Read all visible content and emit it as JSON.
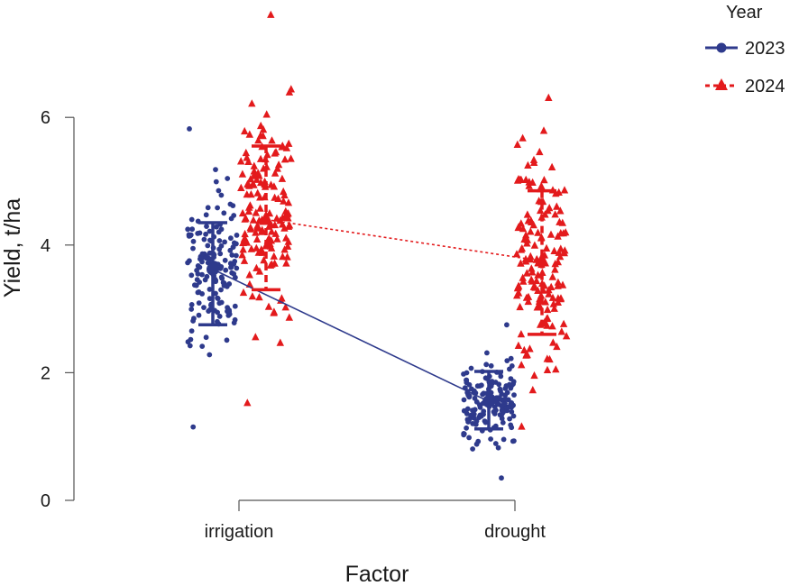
{
  "chart_data": {
    "type": "scatter",
    "title": "",
    "xlabel": "Factor",
    "ylabel": "Yield, t/ha",
    "categories": [
      "irrigation",
      "drought"
    ],
    "ylim": [
      0,
      7.6
    ],
    "yticks": [
      0,
      2,
      4,
      6
    ],
    "grid": false,
    "legend": {
      "title": "Year",
      "position": "top-right"
    },
    "series": [
      {
        "name": "2023",
        "color": "#2e3a8c",
        "marker": "circle",
        "line_style": "solid",
        "means": [
          3.62,
          1.55
        ],
        "error_bars": [
          {
            "category": "irrigation",
            "low": 2.75,
            "high": 4.35
          },
          {
            "category": "drought",
            "low": 1.12,
            "high": 2.02
          }
        ],
        "range": [
          {
            "category": "irrigation",
            "min": 1.15,
            "max": 5.82
          },
          {
            "category": "drought",
            "min": 0.35,
            "max": 2.75
          }
        ]
      },
      {
        "name": "2024",
        "color": "#e31a1c",
        "marker": "triangle",
        "line_style": "dotted",
        "means": [
          4.4,
          3.75
        ],
        "error_bars": [
          {
            "category": "irrigation",
            "low": 3.3,
            "high": 5.55
          },
          {
            "category": "drought",
            "low": 2.6,
            "high": 4.85
          }
        ],
        "range": [
          {
            "category": "irrigation",
            "min": 1.52,
            "max": 7.6
          },
          {
            "category": "drought",
            "min": 1.15,
            "max": 6.3
          }
        ]
      }
    ]
  }
}
